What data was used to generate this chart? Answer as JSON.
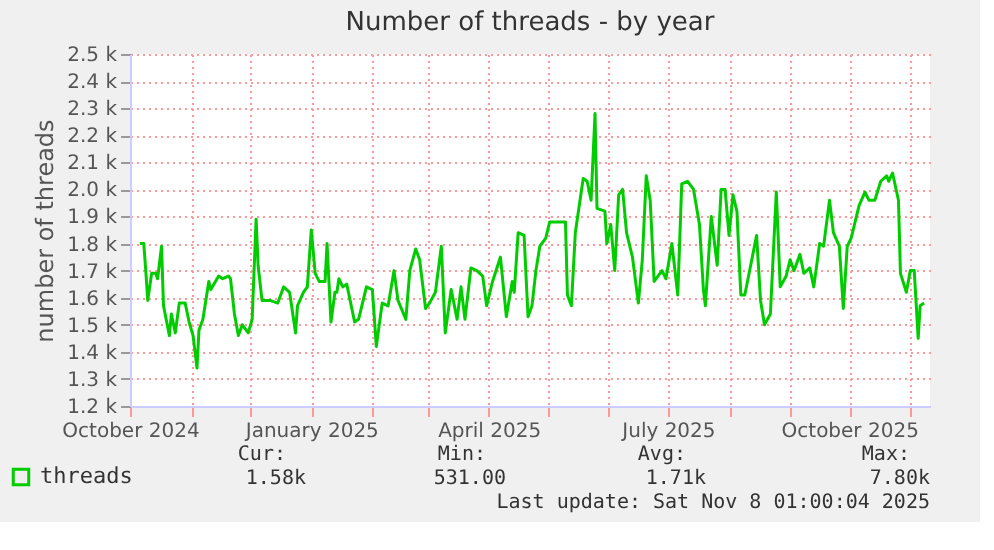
{
  "chart_data": {
    "type": "line",
    "title": "Number of threads - by year",
    "ylabel": "number of threads",
    "x": [
      "2024-10-06",
      "2024-10-08",
      "2024-10-09",
      "2024-10-10",
      "2024-10-12",
      "2024-10-14",
      "2024-10-15",
      "2024-10-17",
      "2024-10-18",
      "2024-10-21",
      "2024-10-22",
      "2024-10-24",
      "2024-10-26",
      "2024-10-29",
      "2024-10-31",
      "2024-11-02",
      "2024-11-04",
      "2024-11-05",
      "2024-11-07",
      "2024-11-10",
      "2024-11-11",
      "2024-11-15",
      "2024-11-17",
      "2024-11-20",
      "2024-11-21",
      "2024-11-23",
      "2024-11-25",
      "2024-11-27",
      "2024-11-30",
      "2024-12-02",
      "2024-12-04",
      "2024-12-05",
      "2024-12-07",
      "2024-12-11",
      "2024-12-15",
      "2024-12-18",
      "2024-12-21",
      "2024-12-24",
      "2024-12-25",
      "2024-12-28",
      "2024-12-30",
      "2025-01-01",
      "2025-01-03",
      "2025-01-05",
      "2025-01-08",
      "2025-01-09",
      "2025-01-11",
      "2025-01-13",
      "2025-01-14",
      "2025-01-15",
      "2025-01-17",
      "2025-01-19",
      "2025-01-23",
      "2025-01-25",
      "2025-01-29",
      "2025-02-01",
      "2025-02-03",
      "2025-02-06",
      "2025-02-09",
      "2025-02-12",
      "2025-02-14",
      "2025-02-18",
      "2025-02-20",
      "2025-02-23",
      "2025-02-25",
      "2025-02-28",
      "2025-03-02",
      "2025-03-05",
      "2025-03-08",
      "2025-03-10",
      "2025-03-13",
      "2025-03-16",
      "2025-03-18",
      "2025-03-20",
      "2025-03-23",
      "2025-03-26",
      "2025-03-29",
      "2025-03-31",
      "2025-04-03",
      "2025-04-07",
      "2025-04-10",
      "2025-04-13",
      "2025-04-14",
      "2025-04-16",
      "2025-04-19",
      "2025-04-21",
      "2025-04-23",
      "2025-04-25",
      "2025-04-27",
      "2025-04-30",
      "2025-05-02",
      "2025-05-05",
      "2025-05-10",
      "2025-05-11",
      "2025-05-13",
      "2025-05-15",
      "2025-05-19",
      "2025-05-21",
      "2025-05-23",
      "2025-05-25",
      "2025-05-26",
      "2025-05-30",
      "2025-05-31",
      "2025-06-02",
      "2025-06-04",
      "2025-06-06",
      "2025-06-08",
      "2025-06-10",
      "2025-06-13",
      "2025-06-16",
      "2025-06-18",
      "2025-06-20",
      "2025-06-22",
      "2025-06-24",
      "2025-06-28",
      "2025-06-30",
      "2025-07-03",
      "2025-07-06",
      "2025-07-08",
      "2025-07-11",
      "2025-07-14",
      "2025-07-17",
      "2025-07-19",
      "2025-07-20",
      "2025-07-23",
      "2025-07-26",
      "2025-07-28",
      "2025-07-30",
      "2025-08-01",
      "2025-08-03",
      "2025-08-05",
      "2025-08-07",
      "2025-08-09",
      "2025-08-12",
      "2025-08-15",
      "2025-08-17",
      "2025-08-19",
      "2025-08-22",
      "2025-08-25",
      "2025-08-27",
      "2025-08-30",
      "2025-09-01",
      "2025-09-03",
      "2025-09-06",
      "2025-09-08",
      "2025-09-11",
      "2025-09-13",
      "2025-09-16",
      "2025-09-18",
      "2025-09-21",
      "2025-09-23",
      "2025-09-26",
      "2025-09-28",
      "2025-09-30",
      "2025-10-02",
      "2025-10-06",
      "2025-10-09",
      "2025-10-11",
      "2025-10-14",
      "2025-10-17",
      "2025-10-20",
      "2025-10-21",
      "2025-10-23",
      "2025-10-26",
      "2025-10-27",
      "2025-10-30",
      "2025-11-01",
      "2025-11-03",
      "2025-11-05",
      "2025-11-06",
      "2025-11-08"
    ],
    "series": [
      {
        "name": "threads",
        "color": "#00cc00",
        "values": [
          1800,
          1800,
          1700,
          1590,
          1690,
          1690,
          1670,
          1790,
          1570,
          1460,
          1540,
          1470,
          1580,
          1580,
          1510,
          1460,
          1340,
          1480,
          1520,
          1660,
          1630,
          1680,
          1670,
          1680,
          1670,
          1540,
          1460,
          1500,
          1470,
          1520,
          1890,
          1720,
          1590,
          1590,
          1580,
          1640,
          1620,
          1470,
          1570,
          1620,
          1640,
          1850,
          1690,
          1660,
          1660,
          1800,
          1510,
          1620,
          1620,
          1670,
          1640,
          1650,
          1510,
          1520,
          1640,
          1630,
          1420,
          1580,
          1570,
          1700,
          1590,
          1520,
          1700,
          1780,
          1740,
          1560,
          1580,
          1620,
          1790,
          1470,
          1630,
          1520,
          1640,
          1520,
          1710,
          1700,
          1680,
          1570,
          1660,
          1750,
          1530,
          1660,
          1620,
          1840,
          1830,
          1530,
          1570,
          1700,
          1790,
          1820,
          1880,
          1880,
          1880,
          1610,
          1570,
          1840,
          2040,
          2030,
          1960,
          2280,
          1930,
          1920,
          1800,
          1870,
          1700,
          1980,
          2000,
          1840,
          1750,
          1580,
          1740,
          2050,
          1960,
          1660,
          1700,
          1670,
          1800,
          1610,
          2020,
          2030,
          2000,
          1870,
          1630,
          1570,
          1900,
          1720,
          2000,
          2000,
          1830,
          1980,
          1920,
          1610,
          1610,
          1720,
          1830,
          1590,
          1500,
          1540,
          1990,
          1640,
          1680,
          1740,
          1700,
          1760,
          1690,
          1710,
          1640,
          1800,
          1790,
          1960,
          1840,
          1790,
          1560,
          1790,
          1820,
          1940,
          1990,
          1960,
          1960,
          2030,
          2050,
          2030,
          2060,
          1960,
          1690,
          1620,
          1700,
          1700,
          1450,
          1570,
          1580
        ]
      }
    ],
    "xlim": [
      "2024-10-01",
      "2025-11-11"
    ],
    "xticks": [
      {
        "value": "2024-10-01",
        "label": "October 2024"
      },
      {
        "value": "2024-11-01",
        "label": null
      },
      {
        "value": "2024-12-01",
        "label": null
      },
      {
        "value": "2025-01-01",
        "label": "January 2025"
      },
      {
        "value": "2025-02-01",
        "label": null
      },
      {
        "value": "2025-03-01",
        "label": null
      },
      {
        "value": "2025-04-01",
        "label": "April 2025"
      },
      {
        "value": "2025-05-01",
        "label": null
      },
      {
        "value": "2025-06-01",
        "label": null
      },
      {
        "value": "2025-07-01",
        "label": "July 2025"
      },
      {
        "value": "2025-08-01",
        "label": null
      },
      {
        "value": "2025-09-01",
        "label": null
      },
      {
        "value": "2025-10-01",
        "label": "October 2025"
      },
      {
        "value": "2025-11-01",
        "label": null
      }
    ],
    "ylim": [
      1200,
      2500
    ],
    "yticks": [
      {
        "value": 1200,
        "label": "1.2 k"
      },
      {
        "value": 1300,
        "label": "1.3 k"
      },
      {
        "value": 1400,
        "label": "1.4 k"
      },
      {
        "value": 1500,
        "label": "1.5 k"
      },
      {
        "value": 1600,
        "label": "1.6 k"
      },
      {
        "value": 1700,
        "label": "1.7 k"
      },
      {
        "value": 1800,
        "label": "1.8 k"
      },
      {
        "value": 1900,
        "label": "1.9 k"
      },
      {
        "value": 2000,
        "label": "2.0 k"
      },
      {
        "value": 2100,
        "label": "2.1 k"
      },
      {
        "value": 2200,
        "label": "2.2 k"
      },
      {
        "value": 2300,
        "label": "2.3 k"
      },
      {
        "value": 2400,
        "label": "2.4 k"
      },
      {
        "value": 2500,
        "label": "2.5 k"
      }
    ],
    "grid": true,
    "legend": "bottom left",
    "annotations": [
      "Cur:",
      "Min:",
      "Avg:",
      "Max:",
      "1.58k",
      "531.00",
      "1.71k",
      "7.80k",
      "Last update: Sat Nov  8 01:00:04 2025"
    ]
  }
}
